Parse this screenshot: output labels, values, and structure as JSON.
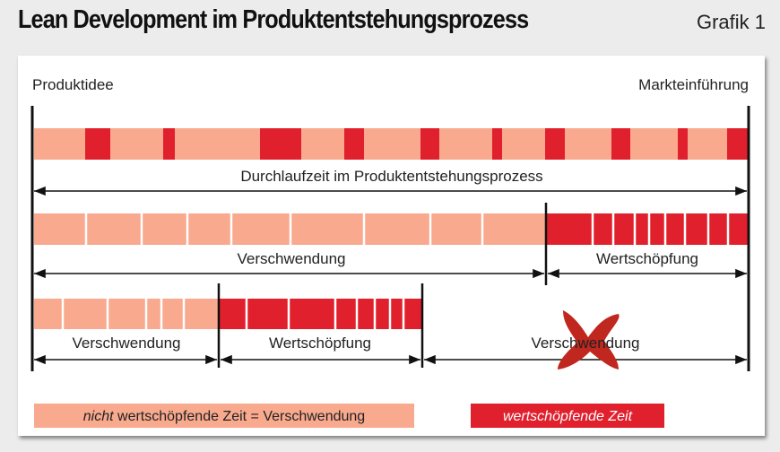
{
  "header": {
    "title": "Lean Development im Produktentstehungsprozess",
    "figure_label": "Grafik 1"
  },
  "diagram": {
    "start_label": "Produktidee",
    "end_label": "Markteinführung",
    "row1_label": "Durchlaufzeit im Produktentstehungsprozess",
    "row2_waste_label": "Verschwendung",
    "row2_value_label": "Wertschöpfung",
    "row3_waste_label": "Verschwendung",
    "row3_value_label": "Wertschöpfung",
    "row3_eliminated_label": "Verschwendung"
  },
  "legend": {
    "waste_prefix": "nicht",
    "waste_rest": " wertschöpfende Zeit = Verschwendung",
    "value_label": "wertschöpfende Zeit"
  },
  "colors": {
    "waste": "#f8a98e",
    "value": "#e0202d",
    "cross": "#c0271e",
    "line": "#111111"
  }
}
